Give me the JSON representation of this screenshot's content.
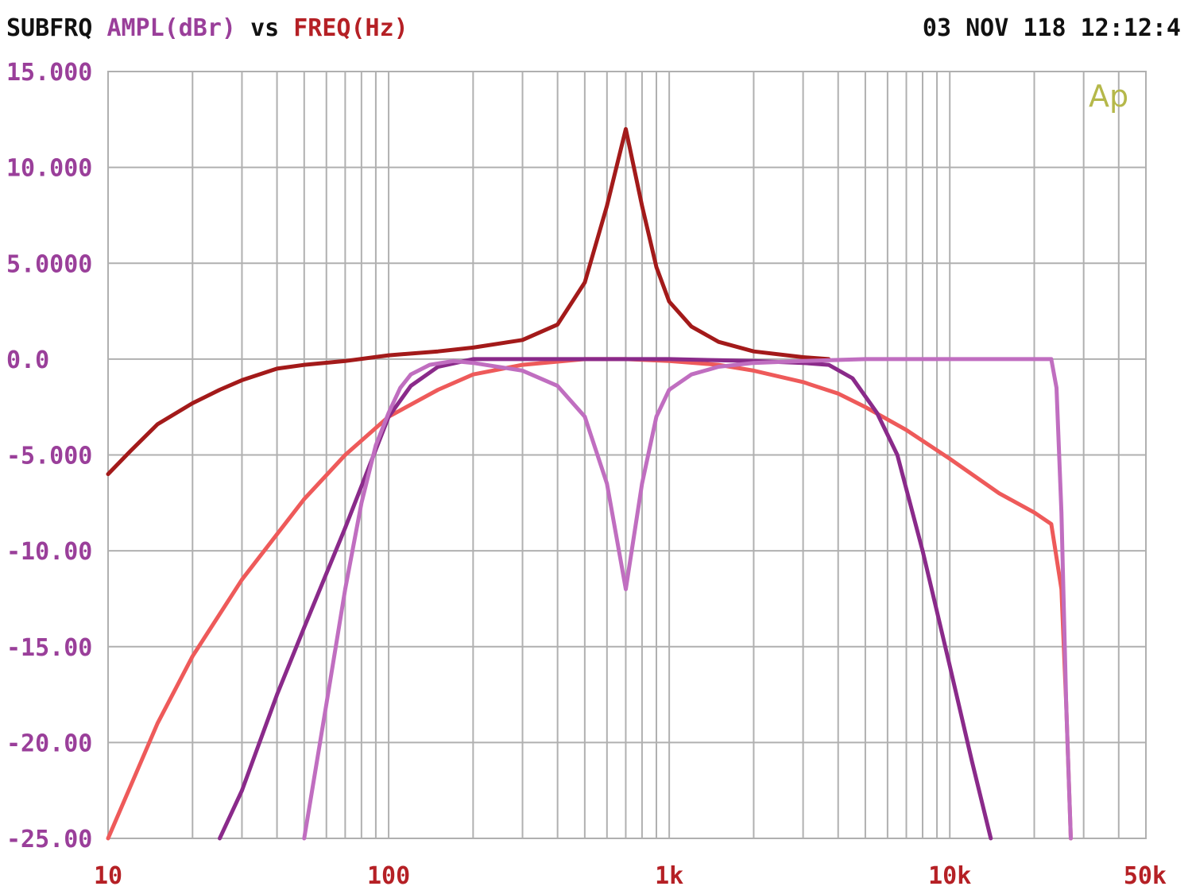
{
  "header": {
    "left_prefix": "SUBFRQ",
    "left_yunit": "AMPL(dBr)",
    "left_vs": "vs",
    "left_xunit": "FREQ(Hz)",
    "right_timestamp": "03 NOV 118 12:12:4"
  },
  "logo": {
    "text": "Ap",
    "color": "#b5b84a"
  },
  "colors": {
    "grid": "#b0b0b0",
    "ytick": "#9a3f9a",
    "xtick": "#b52025",
    "frame": "#b0b0b0"
  },
  "chart_data": {
    "type": "line",
    "title": "",
    "xlabel": "FREQ(Hz)",
    "ylabel": "AMPL(dBr)",
    "xscale": "log",
    "xlim": [
      10,
      50000
    ],
    "ylim": [
      -25,
      15
    ],
    "grid": true,
    "yticks": [
      {
        "value": 15,
        "label": "15.000"
      },
      {
        "value": 10,
        "label": "10.000"
      },
      {
        "value": 5,
        "label": "5.0000"
      },
      {
        "value": 0,
        "label": "0.0"
      },
      {
        "value": -5,
        "label": "-5.000"
      },
      {
        "value": -10,
        "label": "-10.00"
      },
      {
        "value": -15,
        "label": "-15.00"
      },
      {
        "value": -20,
        "label": "-20.00"
      },
      {
        "value": -25,
        "label": "-25.00"
      }
    ],
    "xticks": [
      {
        "value": 10,
        "label": "10"
      },
      {
        "value": 100,
        "label": "100"
      },
      {
        "value": 1000,
        "label": "1k"
      },
      {
        "value": 10000,
        "label": "10k"
      },
      {
        "value": 50000,
        "label": "50k"
      }
    ],
    "series": [
      {
        "color": "#a31a1a",
        "x": [
          10,
          12,
          15,
          20,
          25,
          30,
          40,
          50,
          70,
          100,
          150,
          200,
          300,
          400,
          500,
          600,
          700,
          800,
          900,
          1000,
          1200,
          1500,
          2000,
          3000,
          3700
        ],
        "y": [
          -6.0,
          -4.8,
          -3.4,
          -2.3,
          -1.6,
          -1.1,
          -0.5,
          -0.3,
          -0.1,
          0.2,
          0.4,
          0.6,
          1.0,
          1.8,
          4.0,
          8.0,
          12.0,
          8.0,
          4.8,
          3.0,
          1.7,
          0.9,
          0.4,
          0.1,
          0.0
        ]
      },
      {
        "color": "#ee5a5a",
        "x": [
          10,
          15,
          20,
          30,
          50,
          70,
          100,
          150,
          200,
          300,
          500,
          700,
          1000,
          1500,
          2000,
          3000,
          4000,
          5000,
          7000,
          10000,
          15000,
          20000,
          23000,
          25000,
          26000,
          27000
        ],
        "y": [
          -25.0,
          -19.0,
          -15.5,
          -11.5,
          -7.3,
          -5.0,
          -3.0,
          -1.6,
          -0.8,
          -0.3,
          0.0,
          0.0,
          -0.1,
          -0.3,
          -0.6,
          -1.2,
          -1.8,
          -2.5,
          -3.7,
          -5.2,
          -7.0,
          -8.0,
          -8.6,
          -12.0,
          -18.0,
          -25.0
        ]
      },
      {
        "color": "#8a2a8a",
        "x": [
          25,
          30,
          40,
          50,
          70,
          100,
          120,
          150,
          200,
          300,
          500,
          1000,
          2000,
          3000,
          3700,
          4500,
          5500,
          6500,
          8000,
          10000,
          12000,
          14000
        ],
        "y": [
          -25.0,
          -22.5,
          -17.5,
          -14.0,
          -8.8,
          -3.0,
          -1.4,
          -0.4,
          0.0,
          0.0,
          0.0,
          0.0,
          -0.1,
          -0.2,
          -0.3,
          -1.0,
          -2.8,
          -5.0,
          -10.0,
          -16.0,
          -21.0,
          -25.0
        ]
      },
      {
        "color": "#c06ec0",
        "x": [
          50,
          60,
          70,
          80,
          90,
          100,
          110,
          120,
          140,
          170,
          200,
          300,
          400,
          500,
          600,
          700,
          800,
          900,
          1000,
          1200,
          1500,
          2000,
          3000,
          5000,
          10000,
          20000,
          23000,
          24000,
          25000,
          26000,
          27000
        ],
        "y": [
          -25.0,
          -18.0,
          -12.0,
          -7.5,
          -4.5,
          -2.8,
          -1.5,
          -0.8,
          -0.3,
          -0.1,
          -0.2,
          -0.6,
          -1.4,
          -3.0,
          -6.5,
          -12.0,
          -6.5,
          -3.0,
          -1.6,
          -0.8,
          -0.4,
          -0.2,
          -0.1,
          0.0,
          0.0,
          0.0,
          0.0,
          -1.5,
          -8.0,
          -18.0,
          -25.0
        ]
      }
    ]
  }
}
